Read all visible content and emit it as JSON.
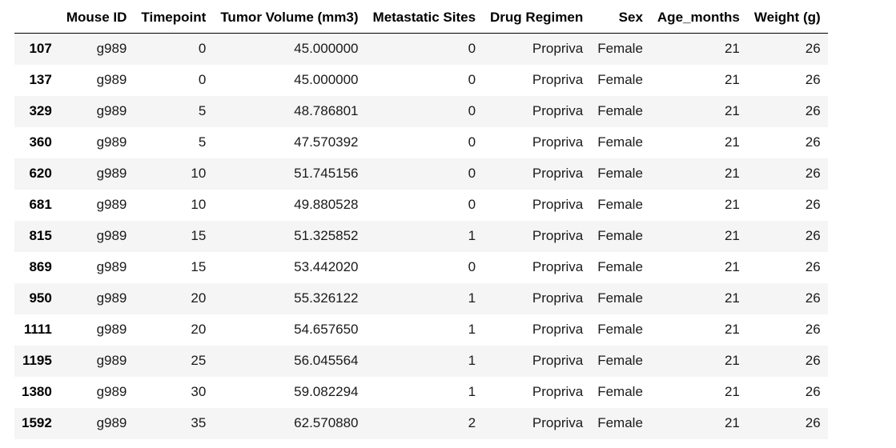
{
  "table": {
    "index_header": "",
    "columns": [
      "Mouse ID",
      "Timepoint",
      "Tumor Volume (mm3)",
      "Metastatic Sites",
      "Drug Regimen",
      "Sex",
      "Age_months",
      "Weight (g)"
    ],
    "rows": [
      {
        "index": "107",
        "cells": [
          "g989",
          "0",
          "45.000000",
          "0",
          "Propriva",
          "Female",
          "21",
          "26"
        ]
      },
      {
        "index": "137",
        "cells": [
          "g989",
          "0",
          "45.000000",
          "0",
          "Propriva",
          "Female",
          "21",
          "26"
        ]
      },
      {
        "index": "329",
        "cells": [
          "g989",
          "5",
          "48.786801",
          "0",
          "Propriva",
          "Female",
          "21",
          "26"
        ]
      },
      {
        "index": "360",
        "cells": [
          "g989",
          "5",
          "47.570392",
          "0",
          "Propriva",
          "Female",
          "21",
          "26"
        ]
      },
      {
        "index": "620",
        "cells": [
          "g989",
          "10",
          "51.745156",
          "0",
          "Propriva",
          "Female",
          "21",
          "26"
        ]
      },
      {
        "index": "681",
        "cells": [
          "g989",
          "10",
          "49.880528",
          "0",
          "Propriva",
          "Female",
          "21",
          "26"
        ]
      },
      {
        "index": "815",
        "cells": [
          "g989",
          "15",
          "51.325852",
          "1",
          "Propriva",
          "Female",
          "21",
          "26"
        ]
      },
      {
        "index": "869",
        "cells": [
          "g989",
          "15",
          "53.442020",
          "0",
          "Propriva",
          "Female",
          "21",
          "26"
        ]
      },
      {
        "index": "950",
        "cells": [
          "g989",
          "20",
          "55.326122",
          "1",
          "Propriva",
          "Female",
          "21",
          "26"
        ]
      },
      {
        "index": "1111",
        "cells": [
          "g989",
          "20",
          "54.657650",
          "1",
          "Propriva",
          "Female",
          "21",
          "26"
        ]
      },
      {
        "index": "1195",
        "cells": [
          "g989",
          "25",
          "56.045564",
          "1",
          "Propriva",
          "Female",
          "21",
          "26"
        ]
      },
      {
        "index": "1380",
        "cells": [
          "g989",
          "30",
          "59.082294",
          "1",
          "Propriva",
          "Female",
          "21",
          "26"
        ]
      },
      {
        "index": "1592",
        "cells": [
          "g989",
          "35",
          "62.570880",
          "2",
          "Propriva",
          "Female",
          "21",
          "26"
        ]
      }
    ]
  },
  "colors": {
    "stripe": "#f5f5f5",
    "header_rule": "#000000",
    "background": "#ffffff"
  }
}
